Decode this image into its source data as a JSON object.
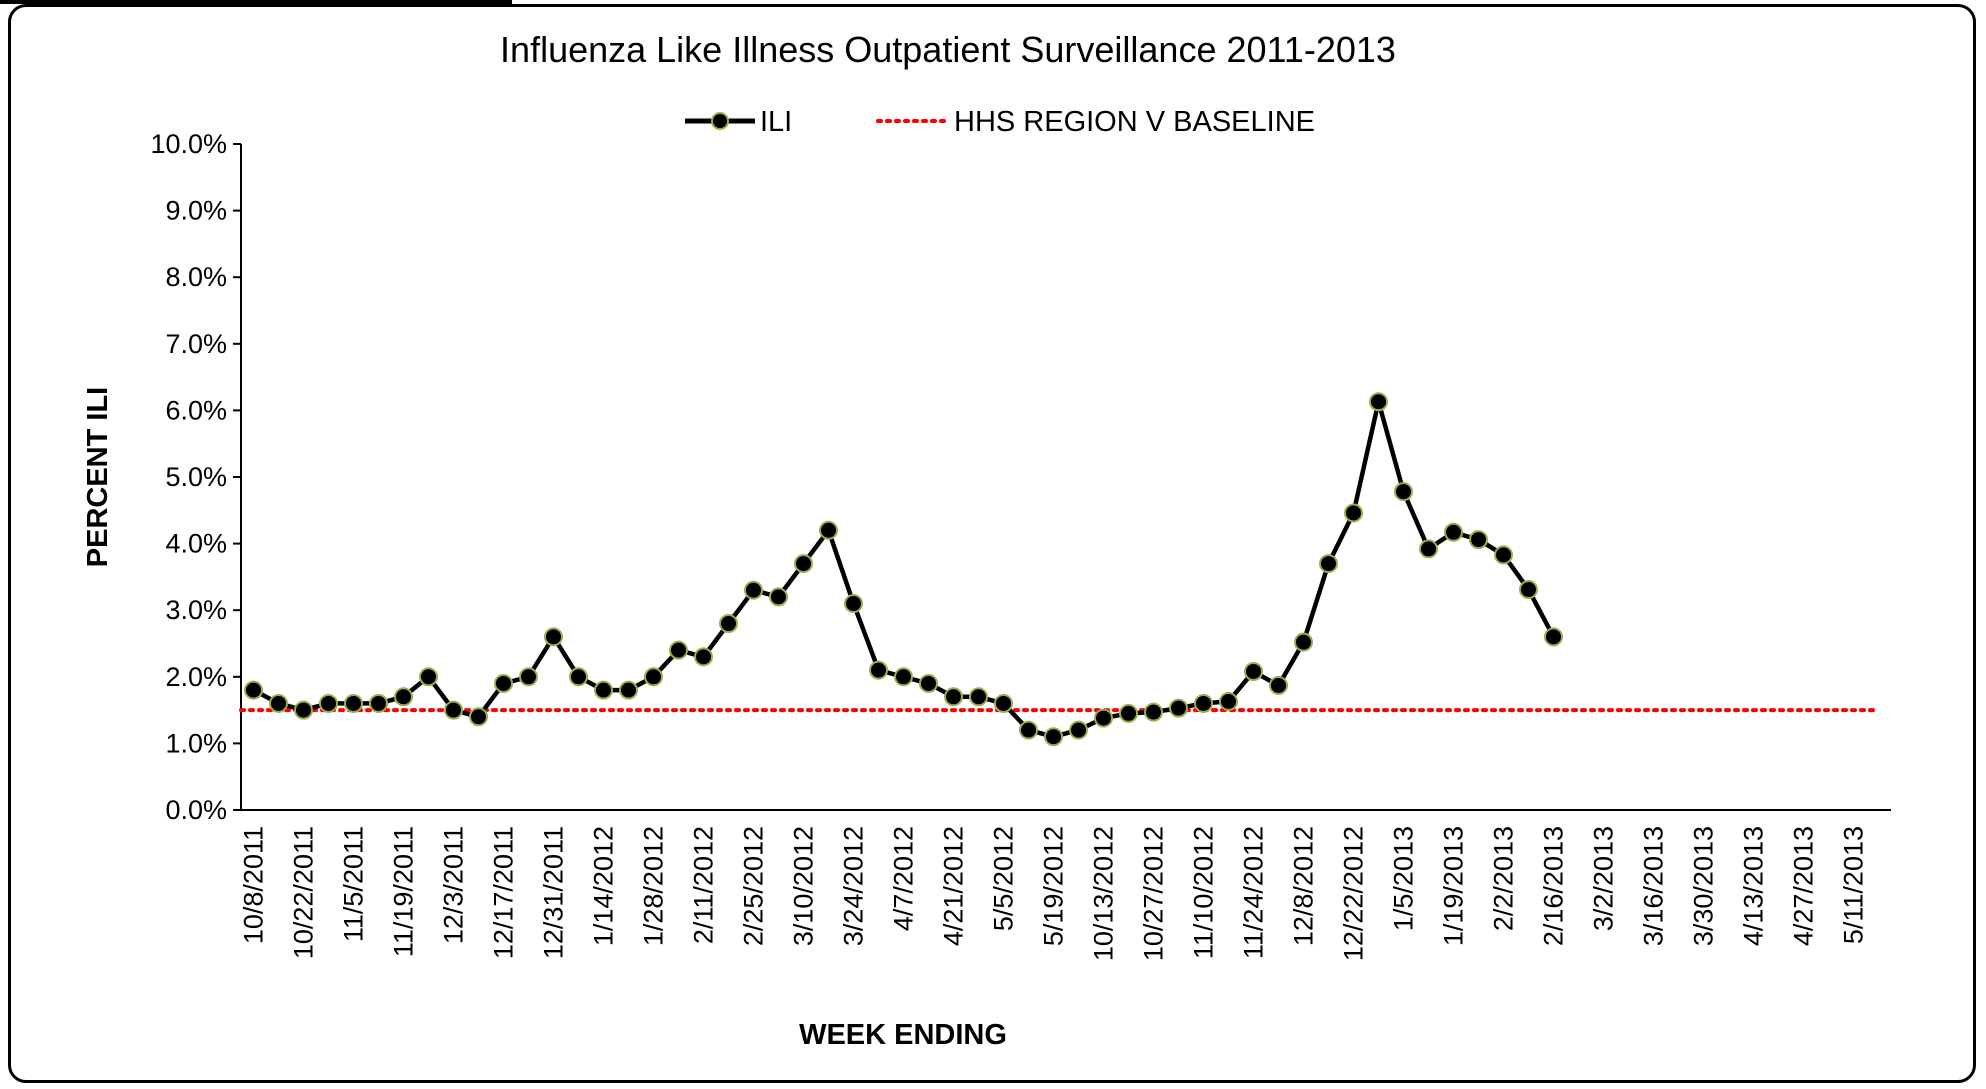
{
  "chart_data": {
    "type": "line",
    "title": "Influenza Like Illness Outpatient Surveillance 2011-2013",
    "xlabel": "WEEK ENDING",
    "ylabel": "PERCENT ILI",
    "ylim": [
      0,
      10
    ],
    "y_ticks": [
      "0.0%",
      "1.0%",
      "2.0%",
      "3.0%",
      "4.0%",
      "5.0%",
      "6.0%",
      "7.0%",
      "8.0%",
      "9.0%",
      "10.0%"
    ],
    "y_tick_values": [
      0,
      1,
      2,
      3,
      4,
      5,
      6,
      7,
      8,
      9,
      10
    ],
    "x_tick_labels": [
      "10/8/2011",
      "10/22/2011",
      "11/5/2011",
      "11/19/2011",
      "12/3/2011",
      "12/17/2011",
      "12/31/2011",
      "1/14/2012",
      "1/28/2012",
      "2/11/2012",
      "2/25/2012",
      "3/10/2012",
      "3/24/2012",
      "4/7/2012",
      "4/21/2012",
      "5/5/2012",
      "5/19/2012",
      "10/13/2012",
      "10/27/2012",
      "11/10/2012",
      "11/24/2012",
      "12/8/2012",
      "12/22/2012",
      "1/5/2013",
      "1/19/2013",
      "2/2/2013",
      "2/16/2013",
      "3/2/2013",
      "3/16/2013",
      "3/30/2013",
      "4/13/2013",
      "4/27/2013",
      "5/11/2013"
    ],
    "legend_position": "top-center",
    "grid": false,
    "series": [
      {
        "name": "ILI",
        "color": "#000000",
        "marker_edge": "#9aad4a",
        "values": [
          1.8,
          1.6,
          1.5,
          1.6,
          1.6,
          1.6,
          1.7,
          2.0,
          1.5,
          1.4,
          1.9,
          2.0,
          2.6,
          2.0,
          1.8,
          1.8,
          2.0,
          2.4,
          2.3,
          2.8,
          3.3,
          3.2,
          3.7,
          4.2,
          3.1,
          2.1,
          2.0,
          1.9,
          1.7,
          1.7,
          1.6,
          1.2,
          1.1,
          1.2,
          1.38,
          1.45,
          1.47,
          1.53,
          1.6,
          1.63,
          2.08,
          1.87,
          2.52,
          3.7,
          4.46,
          6.13,
          4.78,
          3.92,
          4.17,
          4.06,
          3.83,
          3.31,
          2.6
        ]
      },
      {
        "name": "HHS REGION V BASELINE",
        "color": "#ff0000",
        "style": "dotted",
        "value": 1.5
      }
    ]
  }
}
